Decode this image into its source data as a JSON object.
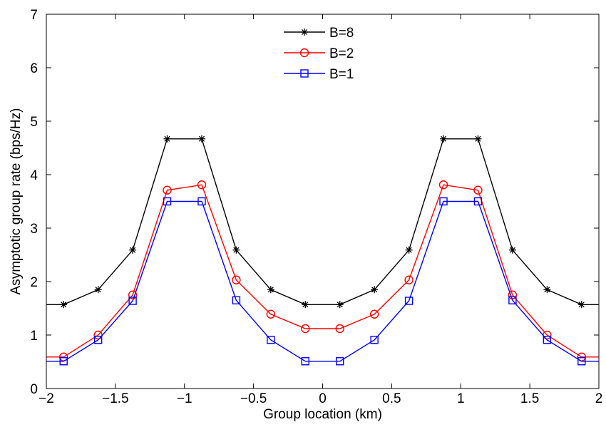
{
  "chart_data": {
    "type": "line",
    "title": "",
    "xlabel": "Group location (km)",
    "ylabel": "Asymptotic group rate (bps/Hz)",
    "xlim": [
      -2,
      2
    ],
    "ylim": [
      0,
      7
    ],
    "xticks": [
      -2,
      -1.5,
      -1,
      -0.5,
      0,
      0.5,
      1,
      1.5,
      2
    ],
    "xtick_labels": [
      "−2",
      "−1.5",
      "−1",
      "−0.5",
      "0",
      "0.5",
      "1",
      "1.5",
      "2"
    ],
    "yticks": [
      0,
      1,
      2,
      3,
      4,
      5,
      6,
      7
    ],
    "ytick_labels": [
      "0",
      "1",
      "2",
      "3",
      "4",
      "5",
      "6",
      "7"
    ],
    "grid": false,
    "legend_position": "top-center",
    "x": [
      -1.875,
      -1.625,
      -1.375,
      -1.125,
      -0.875,
      -0.625,
      -0.375,
      -0.125,
      0.125,
      0.375,
      0.625,
      0.875,
      1.125,
      1.375,
      1.625,
      1.875
    ],
    "series": [
      {
        "name": "B=8",
        "color": "#000000",
        "marker": "asterisk",
        "values": [
          1.57,
          1.85,
          2.59,
          4.67,
          4.67,
          2.59,
          1.85,
          1.57,
          1.57,
          1.85,
          2.59,
          4.67,
          4.67,
          2.59,
          1.85,
          1.57
        ]
      },
      {
        "name": "B=2",
        "color": "#ff0000",
        "marker": "circle",
        "values": [
          0.59,
          1.0,
          1.75,
          3.71,
          3.81,
          2.03,
          1.39,
          1.12,
          1.12,
          1.39,
          2.03,
          3.81,
          3.71,
          1.75,
          1.0,
          0.59
        ]
      },
      {
        "name": "B=1",
        "color": "#0000ff",
        "marker": "square",
        "values": [
          0.51,
          0.91,
          1.64,
          3.5,
          3.5,
          1.65,
          0.91,
          0.51,
          0.51,
          0.91,
          1.64,
          3.5,
          3.5,
          1.65,
          0.91,
          0.51
        ]
      }
    ]
  }
}
